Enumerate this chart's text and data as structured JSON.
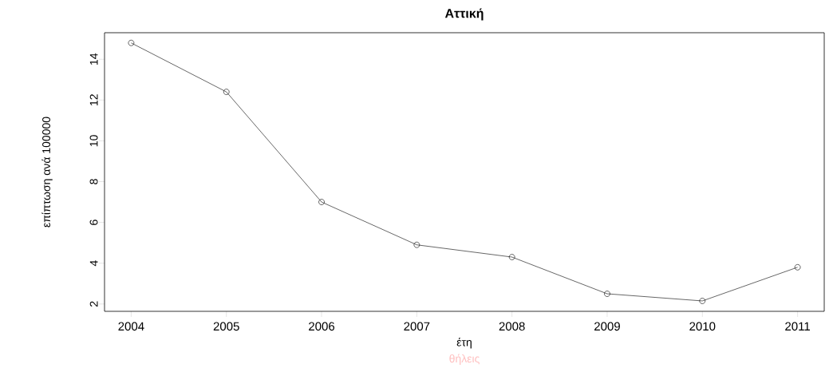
{
  "chart_data": {
    "type": "line",
    "title": "Αττική",
    "xlabel": "έτη",
    "ylabel": "επίπτωση ανά 100000",
    "annotations": [
      "θήλεις"
    ],
    "x": [
      2004,
      2005,
      2006,
      2007,
      2008,
      2009,
      2010,
      2011
    ],
    "series": [
      {
        "color": "#000000",
        "values": [
          14.8,
          12.4,
          7.0,
          4.9,
          4.3,
          2.5,
          2.15,
          3.8
        ]
      }
    ],
    "xlim": [
      2003.72,
      2011.28
    ],
    "ylim": [
      1.64,
      15.3
    ],
    "xticks": [
      2004,
      2005,
      2006,
      2007,
      2008,
      2009,
      2010,
      2011
    ],
    "yticks": [
      2,
      4,
      6,
      8,
      10,
      12,
      14
    ],
    "grid": false,
    "marker": "circle",
    "line_style": "solid"
  }
}
